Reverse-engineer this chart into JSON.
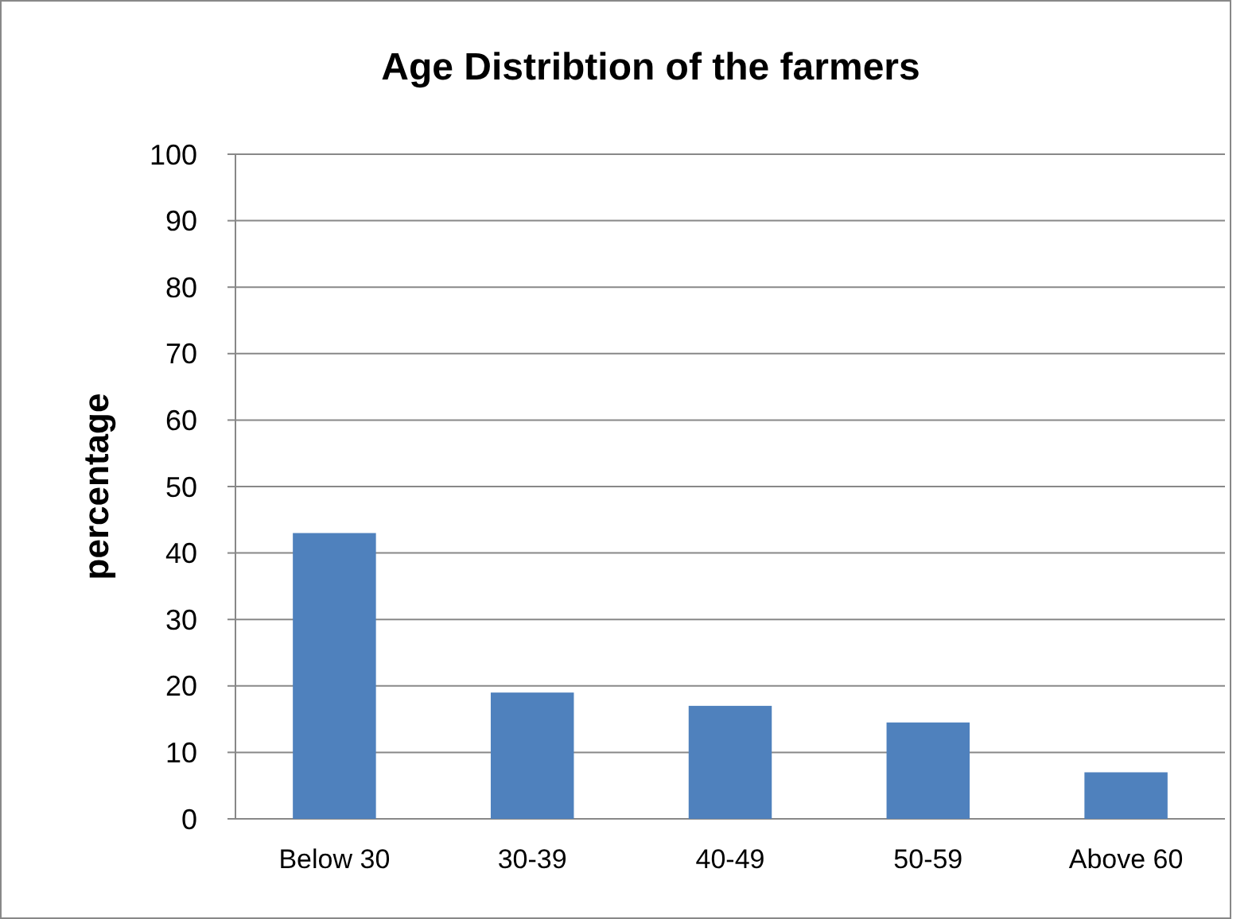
{
  "chart_data": {
    "type": "bar",
    "title": "Age Distribtion of the farmers",
    "ylabel": "percentage",
    "categories": [
      "Below 30",
      "30-39",
      "40-49",
      "50-59",
      "Above 60"
    ],
    "values": [
      43,
      19,
      17,
      14.5,
      7
    ],
    "color": "#4f81bd",
    "ylim": [
      0,
      100
    ],
    "yticks": [
      0,
      10,
      20,
      30,
      40,
      50,
      60,
      70,
      80,
      90,
      100
    ],
    "grid": "y"
  }
}
